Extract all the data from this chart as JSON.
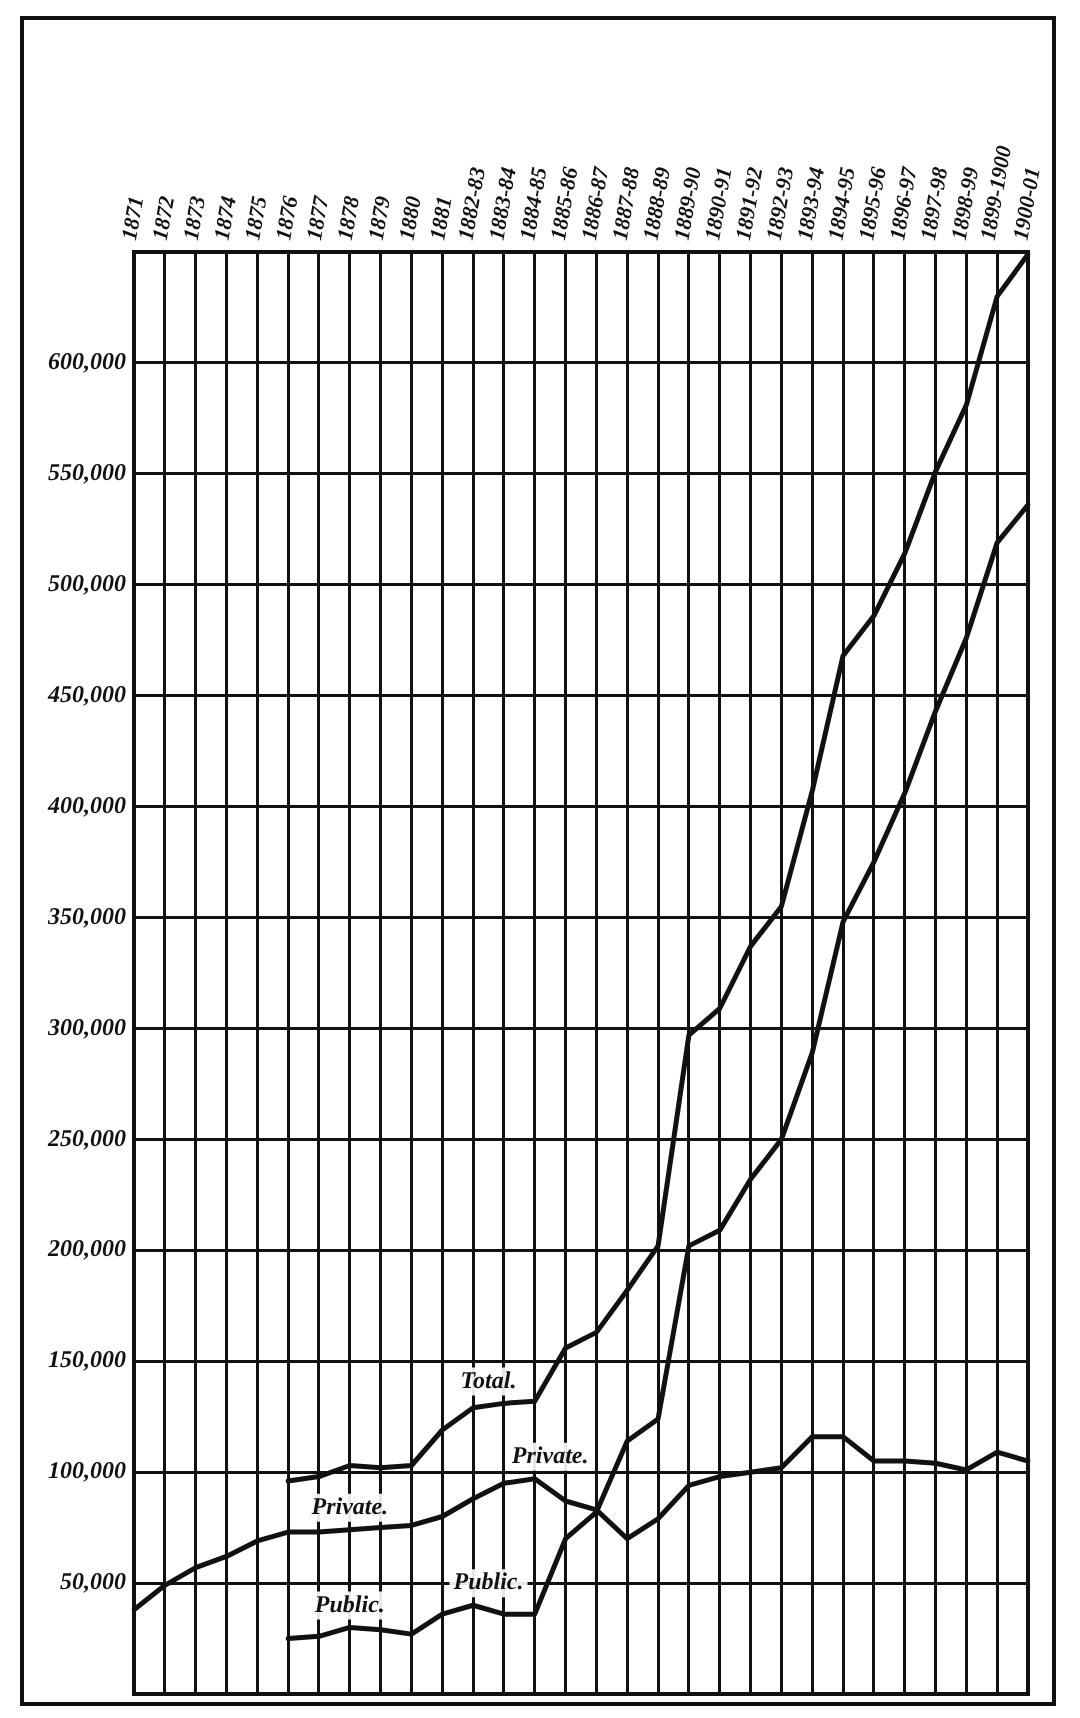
{
  "chart_data": {
    "type": "line",
    "categories": [
      "1871",
      "1872",
      "1873",
      "1874",
      "1875",
      "1876",
      "1877",
      "1878",
      "1879",
      "1880",
      "1881",
      "1882-83",
      "1883-84",
      "1884-85",
      "1885-86",
      "1886-87",
      "1887-88",
      "1888-89",
      "1889-90",
      "1890-91",
      "1891-92",
      "1892-93",
      "1893-94",
      "1894-95",
      "1895-96",
      "1896-97",
      "1897-98",
      "1898-99",
      "1899-1900",
      "1900-01"
    ],
    "series": [
      {
        "name": "Total.",
        "color": "#111111",
        "values": [
          null,
          null,
          null,
          null,
          null,
          96000,
          98000,
          103000,
          102000,
          103000,
          119000,
          129000,
          131000,
          132000,
          156000,
          163000,
          182000,
          202000,
          297000,
          309000,
          337000,
          355000,
          407000,
          468000,
          486000,
          514000,
          551000,
          581000,
          630000,
          649000
        ]
      },
      {
        "name": "Public.",
        "color": "#111111",
        "values": [
          null,
          null,
          null,
          null,
          null,
          25000,
          26000,
          30000,
          29000,
          27000,
          36000,
          40000,
          36000,
          36000,
          70000,
          82000,
          114000,
          124000,
          202000,
          209000,
          232000,
          250000,
          289000,
          348000,
          375000,
          406000,
          443000,
          476000,
          519000,
          536000
        ]
      },
      {
        "name": "Private.",
        "color": "#111111",
        "values": [
          38000,
          49000,
          57000,
          62000,
          69000,
          73000,
          73000,
          74000,
          75000,
          76000,
          80000,
          88000,
          95000,
          97000,
          87000,
          83000,
          70000,
          79000,
          94000,
          98000,
          100000,
          102000,
          116000,
          116000,
          105000,
          105000,
          104000,
          101000,
          109000,
          105000
        ]
      }
    ],
    "ylim": [
      0,
      650000
    ],
    "yticks": [
      {
        "value": 50000,
        "label": "50,000"
      },
      {
        "value": 100000,
        "label": "100,000"
      },
      {
        "value": 150000,
        "label": "150,000"
      },
      {
        "value": 200000,
        "label": "200,000"
      },
      {
        "value": 250000,
        "label": "250,000"
      },
      {
        "value": 300000,
        "label": "300,000"
      },
      {
        "value": 350000,
        "label": "350,000"
      },
      {
        "value": 400000,
        "label": "400,000"
      },
      {
        "value": 450000,
        "label": "450,000"
      },
      {
        "value": 500000,
        "label": "500,000"
      },
      {
        "value": 550000,
        "label": "550,000"
      },
      {
        "value": 600000,
        "label": "600,000"
      }
    ],
    "annotations": [
      {
        "text": "Private.",
        "x": "1878",
        "y": 74000
      },
      {
        "text": "Public.",
        "x": "1878",
        "y": 30000
      }
    ],
    "grid": true,
    "legend": false,
    "marker": "none",
    "line_style": "solid"
  }
}
